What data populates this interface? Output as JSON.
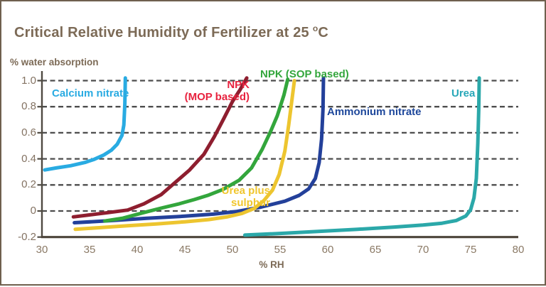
{
  "title": {
    "prefix": "Critical Relative Humidity of Fertilizer at 25",
    "degree": "o",
    "suffix": "C"
  },
  "chart_data": {
    "type": "line",
    "title": "Critical Relative Humidity of Fertilizer at 25 °C",
    "xlabel": "% RH",
    "ylabel": "% water absorption",
    "xlim": [
      30,
      80
    ],
    "ylim": [
      -0.2,
      1.0
    ],
    "x_ticks": [
      30,
      35,
      40,
      45,
      50,
      55,
      60,
      65,
      70,
      75,
      80
    ],
    "y_ticks": [
      1.0,
      0.8,
      0.6,
      0.4,
      0.2,
      0,
      -0.2
    ],
    "y_tick_labels": [
      "1.0",
      "0.8",
      "0.6",
      "0.4",
      "0.2",
      "0",
      "-0.2"
    ],
    "grid": {
      "horizontal": true,
      "style": "dashed",
      "color": "#4D4D4D"
    },
    "axis_color": "#4C443A",
    "tick_label_color": "#837262",
    "heading_color": "#7C6A56",
    "legend_position": "inline-labels",
    "series": [
      {
        "id": "calcium-nitrate",
        "name": "Calcium nitrate",
        "color": "#29ABE2",
        "label_color": "#29ABE2",
        "label_lines": [
          "Calcium nitrate"
        ],
        "critical_rh": 39,
        "points": [
          [
            30.3,
            0.315
          ],
          [
            31.5,
            0.33
          ],
          [
            33,
            0.347
          ],
          [
            34.5,
            0.372
          ],
          [
            35.5,
            0.397
          ],
          [
            36.5,
            0.43
          ],
          [
            37.3,
            0.467
          ],
          [
            37.9,
            0.512
          ],
          [
            38.4,
            0.58
          ],
          [
            38.6,
            0.66
          ],
          [
            38.7,
            0.82
          ],
          [
            38.75,
            1.02
          ]
        ]
      },
      {
        "id": "npk-mop",
        "name": "NPK (MOP based)",
        "color": "#8E1E2F",
        "label_color": "#E8233F",
        "label_lines": [
          "NPK",
          "(MOP based)"
        ],
        "critical_rh": 51.5,
        "points": [
          [
            33.3,
            -0.045
          ],
          [
            35,
            -0.03
          ],
          [
            37,
            -0.012
          ],
          [
            39,
            0.007
          ],
          [
            40.7,
            0.055
          ],
          [
            42.5,
            0.125
          ],
          [
            44.4,
            0.245
          ],
          [
            45.5,
            0.315
          ],
          [
            47,
            0.435
          ],
          [
            48.1,
            0.57
          ],
          [
            49.1,
            0.71
          ],
          [
            50,
            0.84
          ],
          [
            50.8,
            0.93
          ],
          [
            51.5,
            1.02
          ]
        ]
      },
      {
        "id": "ammonium-nitrate",
        "name": "Ammonium nitrate",
        "color": "#23409A",
        "label_color": "#1D479B",
        "label_lines": [
          "Ammonium nitrate"
        ],
        "critical_rh": 59.5,
        "points": [
          [
            33.4,
            -0.09
          ],
          [
            37,
            -0.075
          ],
          [
            41,
            -0.056
          ],
          [
            45,
            -0.04
          ],
          [
            48,
            -0.024
          ],
          [
            50.5,
            -0.003
          ],
          [
            53,
            0.03
          ],
          [
            55.5,
            0.075
          ],
          [
            57,
            0.12
          ],
          [
            58,
            0.17
          ],
          [
            58.7,
            0.25
          ],
          [
            59.1,
            0.37
          ],
          [
            59.35,
            0.55
          ],
          [
            59.5,
            0.78
          ],
          [
            59.55,
            1.02
          ]
        ]
      },
      {
        "id": "npk-sop",
        "name": "NPK (SOP based)",
        "color": "#33A63C",
        "label_color": "#33A63C",
        "label_lines": [
          "NPK (SOP based)"
        ],
        "critical_rh": 55.8,
        "points": [
          [
            36.6,
            -0.077
          ],
          [
            38.5,
            -0.055
          ],
          [
            40.7,
            -0.012
          ],
          [
            42.5,
            0.022
          ],
          [
            44.4,
            0.055
          ],
          [
            46,
            0.088
          ],
          [
            47.5,
            0.122
          ],
          [
            49,
            0.165
          ],
          [
            50.7,
            0.236
          ],
          [
            52,
            0.33
          ],
          [
            53.1,
            0.47
          ],
          [
            54,
            0.61
          ],
          [
            54.7,
            0.73
          ],
          [
            55.4,
            0.89
          ],
          [
            55.8,
            1.01
          ]
        ]
      },
      {
        "id": "urea",
        "name": "Urea",
        "color": "#2BA8A9",
        "label_color": "#27A7B8",
        "label_lines": [
          "Urea"
        ],
        "critical_rh": 75.9,
        "points": [
          [
            51.3,
            -0.185
          ],
          [
            55,
            -0.172
          ],
          [
            59,
            -0.157
          ],
          [
            63,
            -0.141
          ],
          [
            67,
            -0.123
          ],
          [
            70,
            -0.108
          ],
          [
            72,
            -0.094
          ],
          [
            73.5,
            -0.073
          ],
          [
            74.5,
            -0.038
          ],
          [
            75,
            0.01
          ],
          [
            75.35,
            0.1
          ],
          [
            75.6,
            0.25
          ],
          [
            75.75,
            0.52
          ],
          [
            75.85,
            0.78
          ],
          [
            75.9,
            1.02
          ]
        ]
      },
      {
        "id": "urea-plus-sulphur",
        "name": "Urea plus sulphur",
        "color": "#EDC52F",
        "label_color": "#F0C62E",
        "label_lines": [
          "Urea plus",
          "sulphur"
        ],
        "critical_rh": 56.5,
        "points": [
          [
            33.5,
            -0.14
          ],
          [
            36,
            -0.128
          ],
          [
            39,
            -0.113
          ],
          [
            42,
            -0.099
          ],
          [
            45,
            -0.083
          ],
          [
            47.5,
            -0.066
          ],
          [
            49.5,
            -0.044
          ],
          [
            51,
            -0.019
          ],
          [
            52.3,
            0.02
          ],
          [
            53.3,
            0.08
          ],
          [
            54.2,
            0.16
          ],
          [
            54.9,
            0.28
          ],
          [
            55.5,
            0.46
          ],
          [
            55.9,
            0.66
          ],
          [
            56.2,
            0.83
          ],
          [
            56.5,
            1.0
          ]
        ]
      }
    ]
  }
}
